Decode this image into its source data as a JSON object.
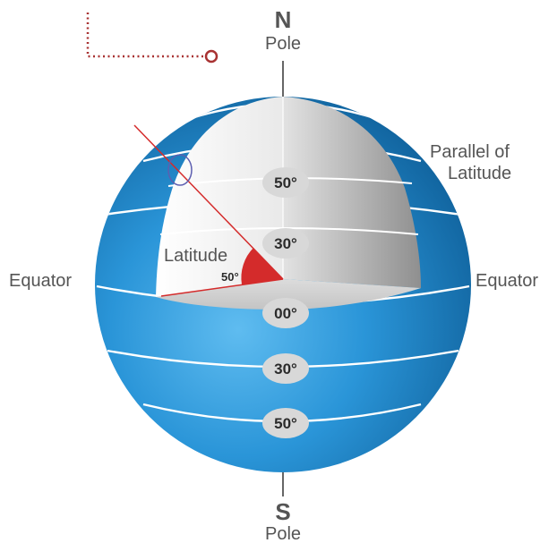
{
  "north": {
    "letter": "N",
    "word": "Pole"
  },
  "south": {
    "letter": "S",
    "word": "Pole"
  },
  "equator_left": "Equator",
  "equator_right": "Equator",
  "parallel_label": {
    "line1": "Parallel of",
    "line2": "Latitude"
  },
  "latitude_label": "Latitude",
  "angle_label": "50°",
  "parallels_north": [
    {
      "label": "50°"
    },
    {
      "label": "30°"
    }
  ],
  "equator_mark": "00°",
  "parallels_south": [
    {
      "label": "30°"
    },
    {
      "label": "50°"
    }
  ],
  "colors": {
    "ocean_dark": "#0f5f9a",
    "ocean_light": "#3aa3e0",
    "cutaway_light": "#f4f4f4",
    "cutaway_shade": "#9a9a9a",
    "accent_red": "#d42b2b",
    "dotted_red": "#a83232",
    "label_gray": "#555555"
  }
}
